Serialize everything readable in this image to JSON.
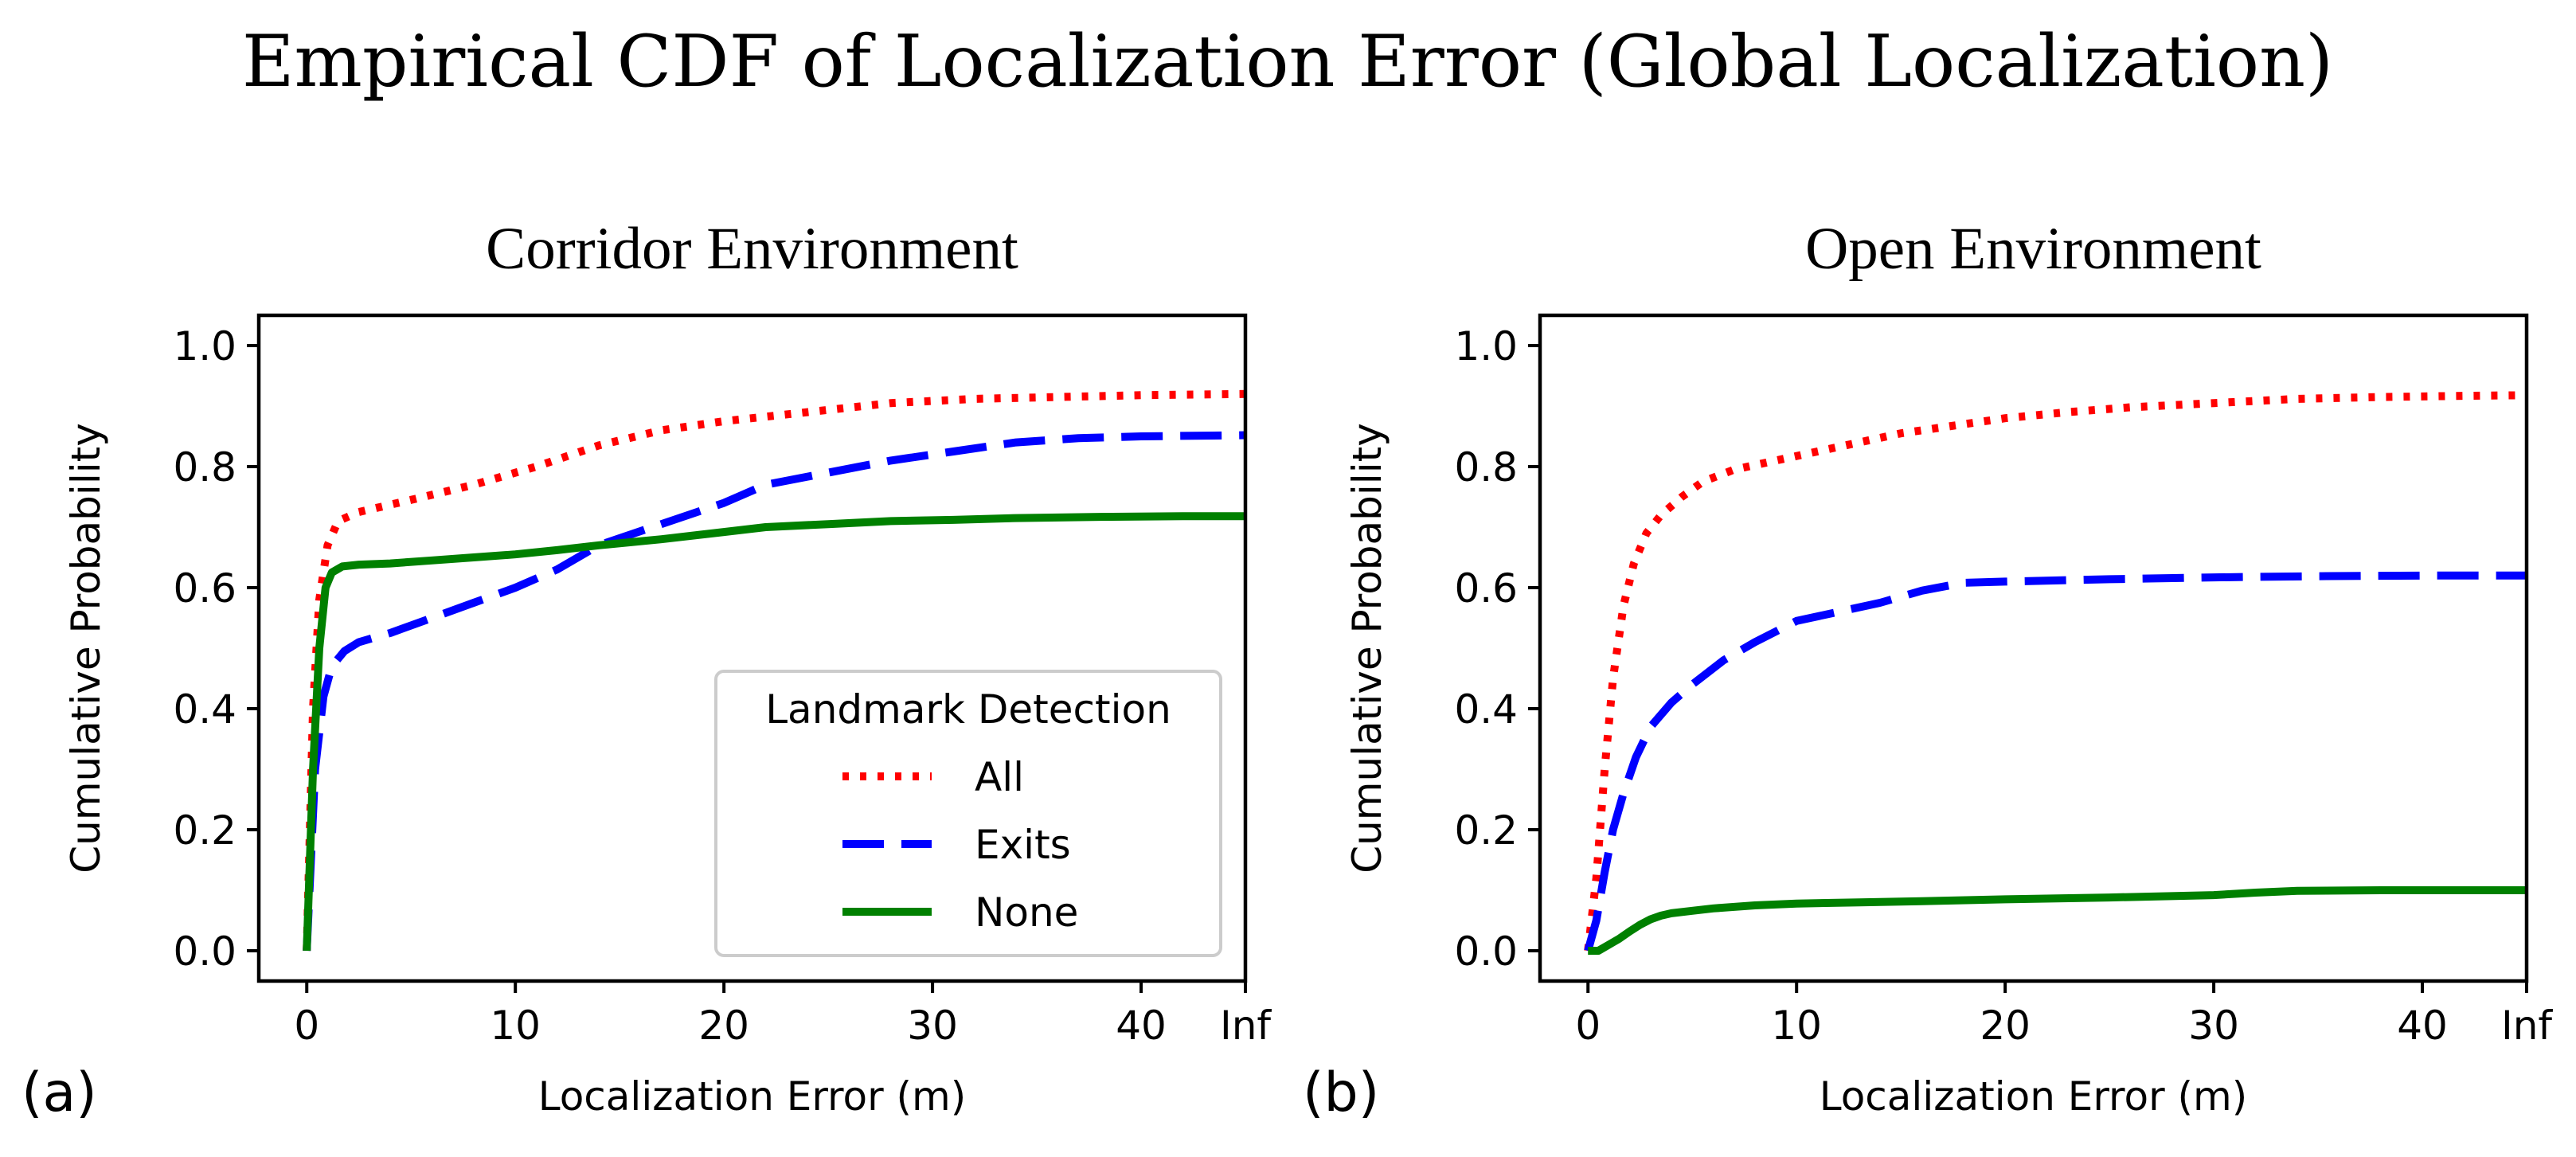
{
  "figure": {
    "title": "Empirical CDF of Localization Error (Global Localization)"
  },
  "legend": {
    "title": "Landmark Detection",
    "entries": [
      {
        "label": "All",
        "color": "#ff0000",
        "style": "dotted"
      },
      {
        "label": "Exits",
        "color": "#0000ff",
        "style": "dashed"
      },
      {
        "label": "None",
        "color": "#008000",
        "style": "solid"
      }
    ],
    "placement": "lower-right of panel (a)"
  },
  "chart_data": [
    {
      "type": "line",
      "panel_letter": "(a)",
      "title": "Corridor Environment",
      "xlabel": "Localization Error (m)",
      "ylabel": "Cumulative Probability",
      "xlim": [
        -2.3,
        45
      ],
      "ylim": [
        -0.05,
        1.05
      ],
      "xticks": [
        0,
        10,
        20,
        30,
        40,
        45
      ],
      "xticklabels": [
        "0",
        "10",
        "20",
        "30",
        "40",
        "Inf"
      ],
      "yticks": [
        0,
        0.2,
        0.4,
        0.6,
        0.8,
        1.0
      ],
      "yticklabels": [
        "0.0",
        "0.2",
        "0.4",
        "0.6",
        "0.8",
        "1.0"
      ],
      "series": [
        {
          "name": "All",
          "color": "#ff0000",
          "style": "dotted",
          "x": [
            0,
            0.3,
            0.6,
            1.0,
            1.5,
            2.5,
            5,
            8,
            11,
            14,
            17,
            20,
            24,
            28,
            32,
            36,
            40,
            45
          ],
          "y": [
            0,
            0.4,
            0.58,
            0.67,
            0.71,
            0.725,
            0.745,
            0.77,
            0.8,
            0.835,
            0.86,
            0.875,
            0.89,
            0.905,
            0.912,
            0.915,
            0.918,
            0.92
          ]
        },
        {
          "name": "Exits",
          "color": "#0000ff",
          "style": "dashed",
          "x": [
            0,
            0.4,
            0.8,
            1.2,
            1.8,
            2.5,
            4,
            6,
            8,
            10,
            12,
            14,
            17,
            20,
            22,
            25,
            28,
            31,
            34,
            37,
            40,
            45
          ],
          "y": [
            0,
            0.3,
            0.42,
            0.47,
            0.495,
            0.51,
            0.525,
            0.55,
            0.575,
            0.6,
            0.63,
            0.67,
            0.705,
            0.74,
            0.77,
            0.79,
            0.81,
            0.825,
            0.84,
            0.847,
            0.85,
            0.852
          ]
        },
        {
          "name": "None",
          "color": "#008000",
          "style": "solid",
          "x": [
            0,
            0.3,
            0.6,
            0.9,
            1.2,
            1.7,
            2.5,
            4,
            6,
            8,
            10,
            12,
            14,
            17,
            20,
            22,
            25,
            28,
            31,
            34,
            38,
            42,
            45
          ],
          "y": [
            0,
            0.3,
            0.5,
            0.6,
            0.625,
            0.635,
            0.638,
            0.64,
            0.645,
            0.65,
            0.655,
            0.662,
            0.67,
            0.68,
            0.692,
            0.7,
            0.705,
            0.71,
            0.712,
            0.715,
            0.717,
            0.718,
            0.718
          ]
        }
      ]
    },
    {
      "type": "line",
      "panel_letter": "(b)",
      "title": "Open Environment",
      "xlabel": "Localization Error (m)",
      "ylabel": "Cumulative Probability",
      "xlim": [
        -2.3,
        45
      ],
      "ylim": [
        -0.05,
        1.05
      ],
      "xticks": [
        0,
        10,
        20,
        30,
        40,
        45
      ],
      "xticklabels": [
        "0",
        "10",
        "20",
        "30",
        "40",
        "Inf"
      ],
      "yticks": [
        0,
        0.2,
        0.4,
        0.6,
        0.8,
        1.0
      ],
      "yticklabels": [
        "0.0",
        "0.2",
        "0.4",
        "0.6",
        "0.8",
        "1.0"
      ],
      "series": [
        {
          "name": "All",
          "color": "#ff0000",
          "style": "dotted",
          "x": [
            0,
            0.4,
            0.8,
            1.2,
            1.7,
            2.2,
            2.8,
            3.5,
            4.5,
            5.5,
            7,
            9,
            11,
            13,
            15,
            17,
            20,
            23,
            26,
            30,
            34,
            38,
            42,
            45
          ],
          "y": [
            0,
            0.12,
            0.3,
            0.45,
            0.57,
            0.64,
            0.69,
            0.72,
            0.75,
            0.775,
            0.795,
            0.81,
            0.825,
            0.84,
            0.855,
            0.865,
            0.88,
            0.89,
            0.898,
            0.905,
            0.912,
            0.915,
            0.917,
            0.918
          ]
        },
        {
          "name": "Exits",
          "color": "#0000ff",
          "style": "dashed",
          "x": [
            0,
            0.4,
            0.8,
            1.2,
            1.7,
            2.3,
            3,
            4,
            5,
            6.5,
            8,
            10,
            12,
            14,
            16,
            18,
            20,
            25,
            30,
            35,
            40,
            45
          ],
          "y": [
            0,
            0.05,
            0.13,
            0.2,
            0.26,
            0.32,
            0.37,
            0.41,
            0.44,
            0.48,
            0.51,
            0.545,
            0.56,
            0.575,
            0.595,
            0.608,
            0.61,
            0.614,
            0.617,
            0.619,
            0.62,
            0.62
          ]
        },
        {
          "name": "None",
          "color": "#008000",
          "style": "solid",
          "x": [
            0,
            0.5,
            1,
            1.5,
            2,
            2.5,
            3,
            3.5,
            4,
            5,
            6,
            8,
            10,
            13,
            16,
            20,
            25,
            30,
            32,
            34,
            38,
            42,
            45
          ],
          "y": [
            0,
            0.0,
            0.01,
            0.02,
            0.032,
            0.043,
            0.052,
            0.058,
            0.062,
            0.066,
            0.07,
            0.075,
            0.078,
            0.08,
            0.082,
            0.085,
            0.088,
            0.092,
            0.096,
            0.099,
            0.1,
            0.1,
            0.1
          ]
        }
      ]
    }
  ]
}
